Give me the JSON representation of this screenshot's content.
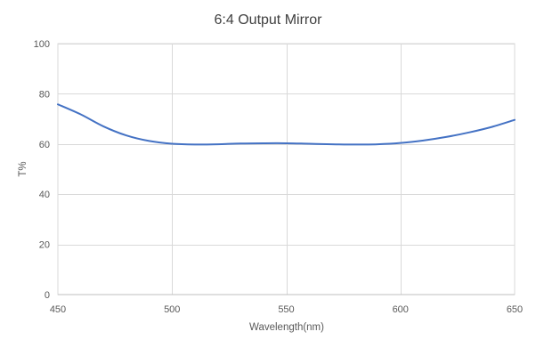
{
  "chart_data": {
    "type": "line",
    "title": "6:4 Output Mirror",
    "xlabel": "Wavelength(nm)",
    "ylabel": "T%",
    "xlim": [
      450,
      650
    ],
    "ylim": [
      0,
      100
    ],
    "x_ticks": [
      450,
      500,
      550,
      600,
      650
    ],
    "y_ticks": [
      0,
      20,
      40,
      60,
      80,
      100
    ],
    "grid": true,
    "legend": "none",
    "series": [
      {
        "color": "#4472c4",
        "x": [
          450,
          460,
          470,
          480,
          490,
          500,
          510,
          520,
          530,
          540,
          550,
          560,
          570,
          580,
          590,
          600,
          610,
          620,
          630,
          640,
          650
        ],
        "y": [
          75.8,
          71.8,
          67.0,
          63.4,
          61.2,
          60.1,
          59.8,
          59.9,
          60.2,
          60.3,
          60.3,
          60.1,
          59.9,
          59.8,
          59.9,
          60.4,
          61.4,
          62.8,
          64.6,
          66.8,
          69.6
        ]
      }
    ]
  }
}
